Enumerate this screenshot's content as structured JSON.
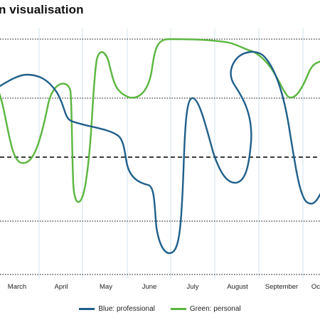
{
  "chart_data": {
    "type": "line",
    "title": "n visualisation",
    "xlabel": "",
    "ylabel": "",
    "x_ticks": [
      "March",
      "April",
      "May",
      "June",
      "July",
      "August",
      "September",
      "Oc"
    ],
    "grid": true,
    "legend_position": "bottom",
    "series": [
      {
        "name": "Blue: professional",
        "color": "#1f5f8b",
        "values": [
          [
            "Mar 1",
            0.6
          ],
          [
            "Mar 12",
            0.75
          ],
          [
            "Mar 28",
            0.55
          ],
          [
            "Apr 5",
            0.18
          ],
          [
            "Apr 20",
            0.0
          ],
          [
            "May 1",
            -0.2
          ],
          [
            "May 15",
            -0.45
          ],
          [
            "Jun 5",
            -1.15
          ],
          [
            "Jun 12",
            -0.9
          ],
          [
            "Jun 22",
            0.35
          ],
          [
            "Jul 10",
            -0.1
          ],
          [
            "Jul 25",
            0.75
          ],
          [
            "Aug 15",
            0.95
          ],
          [
            "Sep 1",
            0.3
          ],
          [
            "Sep 15",
            -0.6
          ],
          [
            "Oct 1",
            -0.2
          ]
        ]
      },
      {
        "name": "Green: personal",
        "color": "#5ab63e",
        "values": [
          [
            "Mar 1",
            0.55
          ],
          [
            "Mar 8",
            0.0
          ],
          [
            "Mar 18",
            0.05
          ],
          [
            "Apr 2",
            0.6
          ],
          [
            "Apr 8",
            0.5
          ],
          [
            "Apr 12",
            -0.3
          ],
          [
            "Apr 22",
            -0.15
          ],
          [
            "May 1",
            0.95
          ],
          [
            "May 15",
            0.55
          ],
          [
            "Jun 1",
            1.0
          ],
          [
            "Jul 1",
            1.0
          ],
          [
            "Aug 10",
            0.9
          ],
          [
            "Sep 5",
            0.5
          ],
          [
            "Sep 20",
            0.8
          ],
          [
            "Oct 1",
            0.85
          ]
        ]
      }
    ]
  }
}
